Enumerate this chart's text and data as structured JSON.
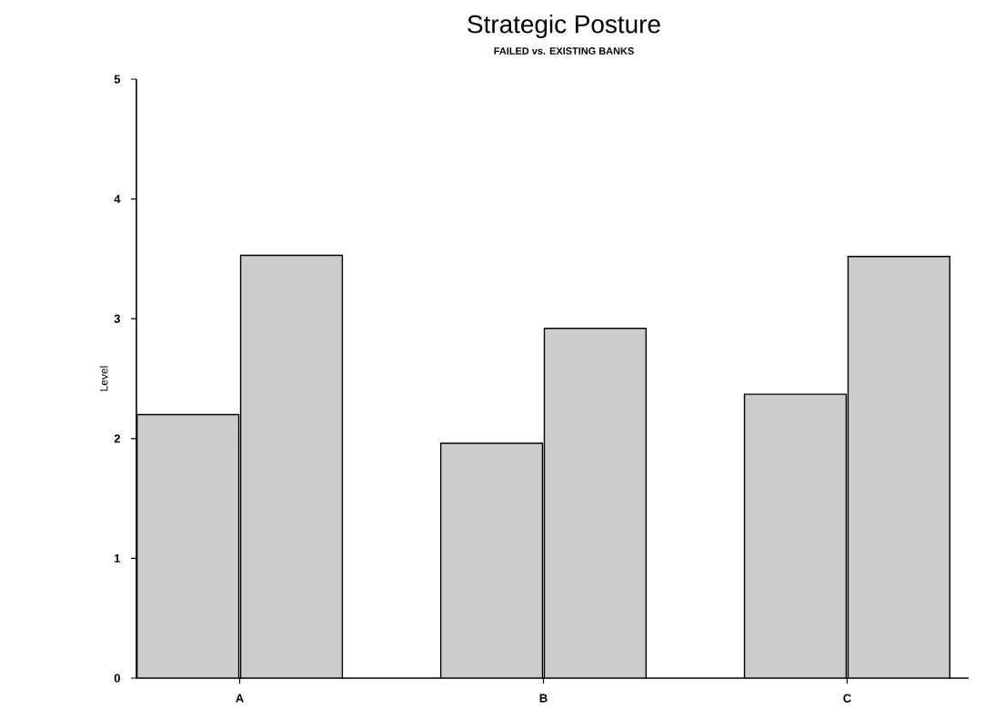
{
  "chart_data": {
    "type": "bar",
    "title": "Strategic Posture",
    "subtitle": "FAILED vs. EXISTING BANKS",
    "ylabel": "Level",
    "categories": [
      "A",
      "B",
      "C"
    ],
    "series": [
      {
        "color": "#cccccc",
        "values": [
          2.2,
          1.96,
          2.37
        ]
      },
      {
        "color": "#cccccc",
        "values": [
          3.53,
          2.92,
          3.52
        ]
      }
    ],
    "ylim": [
      0,
      5
    ],
    "yticks": [
      0,
      1,
      2,
      3,
      4,
      5
    ]
  }
}
